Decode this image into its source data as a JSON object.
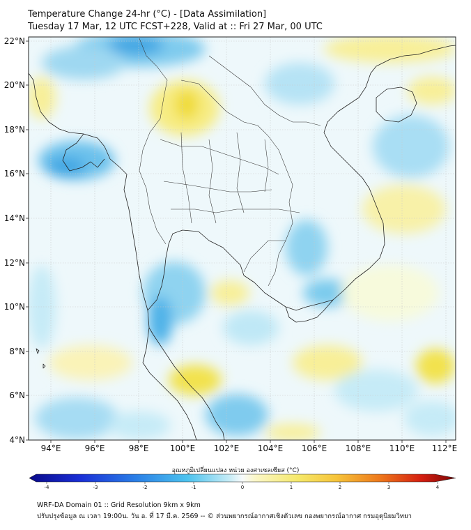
{
  "header": {
    "line1": "Temperature Change 24-hr (°C) - [Data Assimilation]",
    "line2": "Tuesday 17 Mar, 12 UTC FCST+228, Valid at :: Fri 27 Mar, 00 UTC"
  },
  "map": {
    "lat_labels": [
      "22°N",
      "20°N",
      "18°N",
      "16°N",
      "14°N",
      "12°N",
      "10°N",
      "8°N",
      "6°N",
      "4°N"
    ],
    "lon_labels": [
      "94°E",
      "96°E",
      "98°E",
      "100°E",
      "102°E",
      "104°E",
      "106°E",
      "108°E",
      "110°E",
      "112°E"
    ],
    "lon_range": [
      93,
      112.5
    ],
    "lat_range": [
      4,
      22.2
    ],
    "field_colors": {
      "cool_strong": "#4fb2e8",
      "cool": "#8fd3f0",
      "cool_light": "#c6ebf7",
      "neutral": "#f2f9fb",
      "warm_light": "#fbf6c4",
      "warm": "#f7ee8c",
      "warm_strong": "#f2e24e"
    }
  },
  "colorbar": {
    "title": "อุณหภูมิเปลี่ยนแปลง หน่วย องศาเซลเซียส (°C)",
    "ticks": [
      "-4",
      "-3",
      "-2",
      "-1",
      "0",
      "1",
      "2",
      "3",
      "4"
    ],
    "range": [
      -4,
      4
    ]
  },
  "footer": {
    "line1": "WRF-DA Domain 01 :: Grid Resolution 9km x 9km",
    "line2": "ปรับปรุงข้อมูล ณ เวลา 19:00น. วัน อ. ที่ 17 มี.ค. 2569 -- © ส่วนพยากรณ์อากาศเชิงตัวเลข กองพยากรณ์อากาศ กรมอุตุนิยมวิทยา"
  }
}
